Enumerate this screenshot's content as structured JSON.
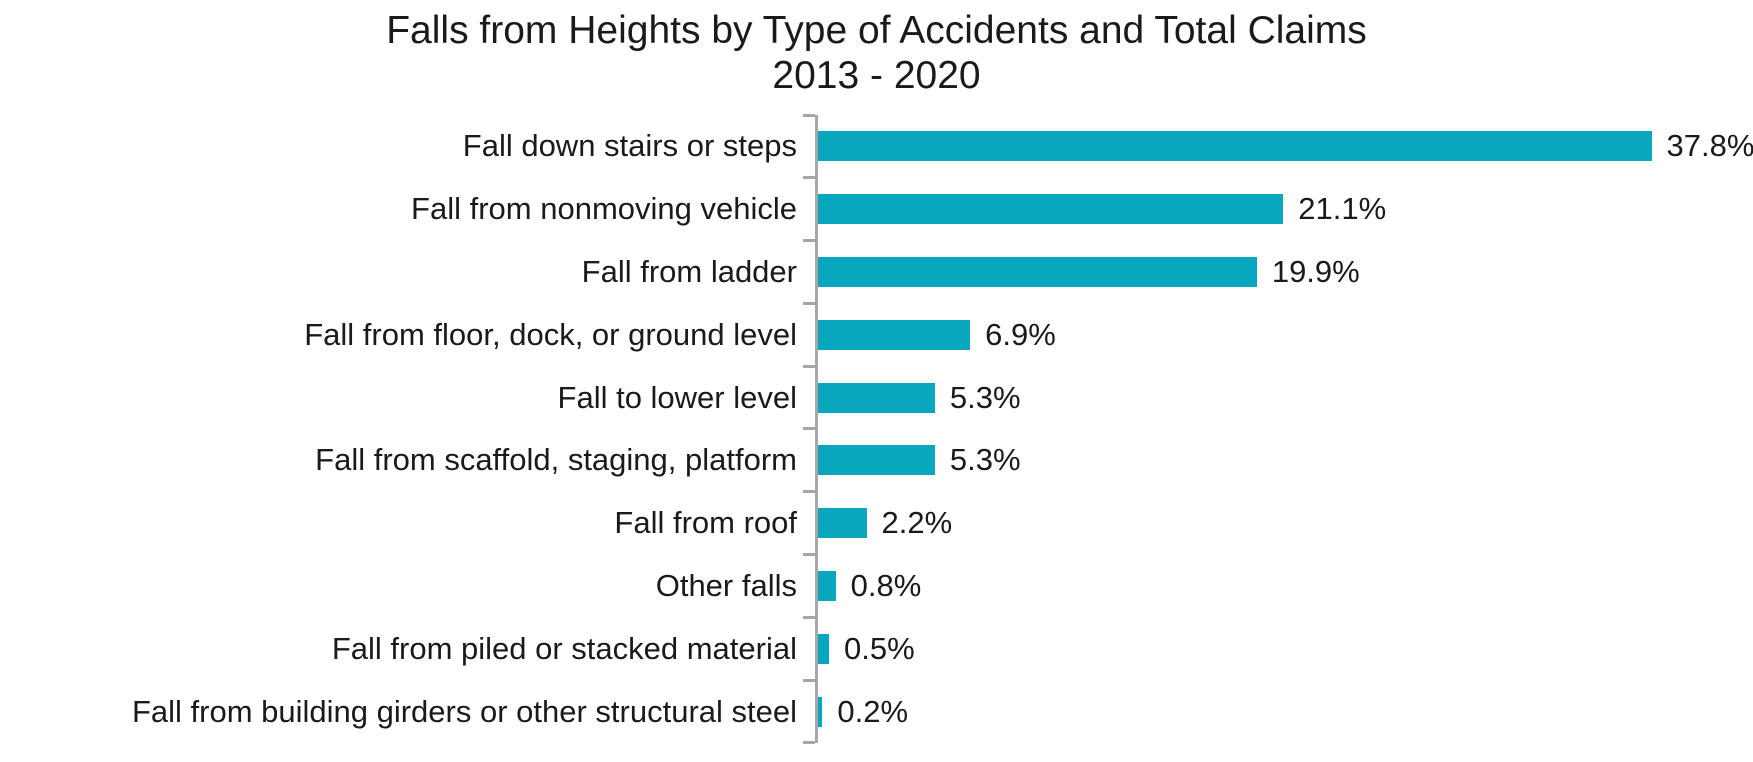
{
  "chart_data": {
    "type": "bar",
    "orientation": "horizontal",
    "title": "Falls from Heights by Type of Accidents and Total Claims",
    "subtitle": "2013 - 2020",
    "categories": [
      "Fall down stairs or steps",
      "Fall from nonmoving vehicle",
      "Fall from ladder",
      "Fall from floor, dock, or ground level",
      "Fall to lower level",
      "Fall from scaffold, staging, platform",
      "Fall from roof",
      "Other falls",
      "Fall from piled or stacked material",
      "Fall from building girders or other structural steel"
    ],
    "values": [
      37.8,
      21.1,
      19.9,
      6.9,
      5.3,
      5.3,
      2.2,
      0.8,
      0.5,
      0.2
    ],
    "value_labels": [
      "37.8%",
      "21.1%",
      "19.9%",
      "6.9%",
      "5.3%",
      "5.3%",
      "2.2%",
      "0.8%",
      "0.5%",
      "0.2%"
    ],
    "xlabel": "",
    "ylabel": "",
    "xlim": [
      0,
      42.4
    ],
    "grid": false,
    "legend": false,
    "bar_color": "#09a7bd",
    "axis_color": "#a6a6a6",
    "text_color": "#1a1a1a",
    "background_color": "#ffffff"
  }
}
